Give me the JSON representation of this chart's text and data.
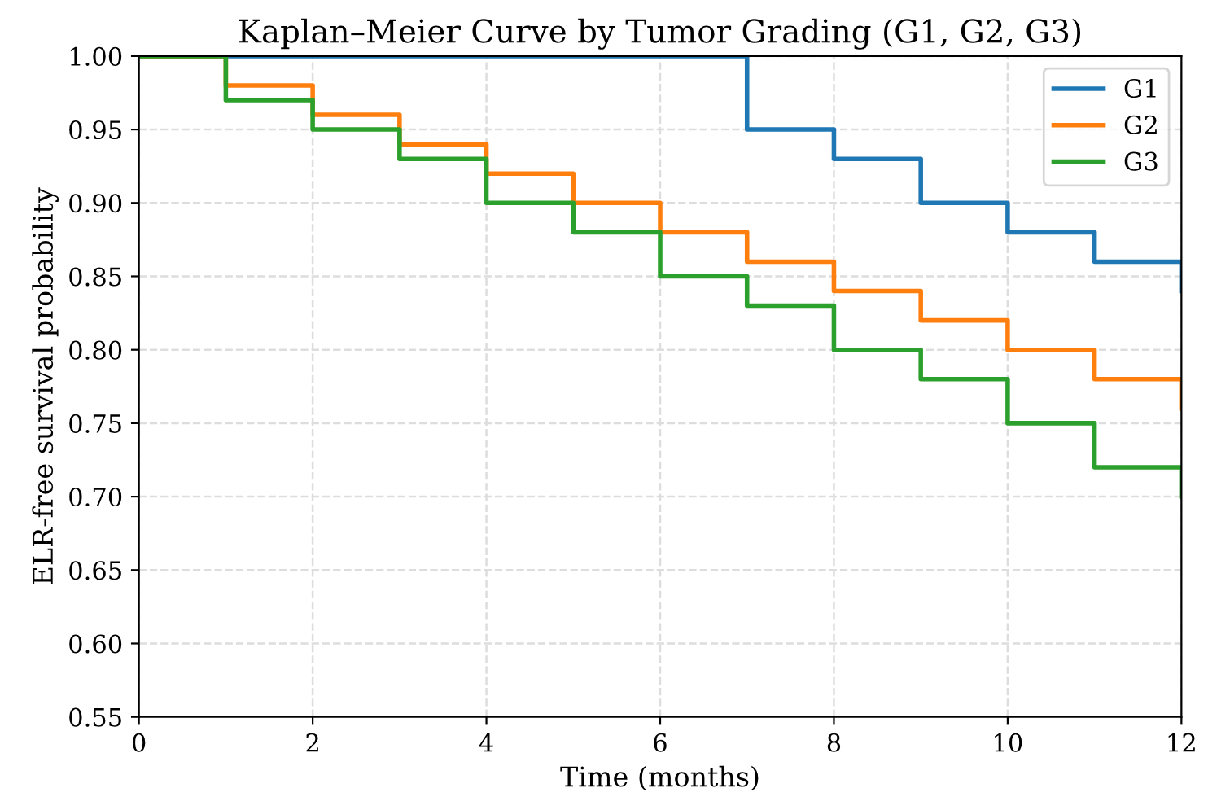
{
  "chart_data": {
    "type": "step",
    "title": "Kaplan–Meier Curve by Tumor Grading (G1, G2, G3)",
    "xlabel": "Time (months)",
    "ylabel": "ELR-free survival probability",
    "x": [
      0,
      1,
      2,
      3,
      4,
      5,
      6,
      7,
      8,
      9,
      10,
      11,
      12
    ],
    "series": [
      {
        "name": "G1",
        "color": "#1f77b4",
        "values": [
          1.0,
          1.0,
          1.0,
          1.0,
          1.0,
          1.0,
          1.0,
          0.95,
          0.93,
          0.9,
          0.88,
          0.86,
          0.84
        ]
      },
      {
        "name": "G2",
        "color": "#ff7f0e",
        "values": [
          1.0,
          0.98,
          0.96,
          0.94,
          0.92,
          0.9,
          0.88,
          0.86,
          0.84,
          0.82,
          0.8,
          0.78,
          0.76
        ]
      },
      {
        "name": "G3",
        "color": "#2ca02c",
        "values": [
          1.0,
          0.97,
          0.95,
          0.93,
          0.9,
          0.88,
          0.85,
          0.83,
          0.8,
          0.78,
          0.75,
          0.72,
          0.7
        ]
      }
    ],
    "xlim": [
      0,
      12
    ],
    "xticks": [
      0,
      2,
      4,
      6,
      8,
      10,
      12
    ],
    "ylim": [
      0.55,
      1.0
    ],
    "yticks": [
      {
        "value": 0.55,
        "label": "0.55"
      },
      {
        "value": 0.6,
        "label": "0.60"
      },
      {
        "value": 0.65,
        "label": "0.65"
      },
      {
        "value": 0.7,
        "label": "0.70"
      },
      {
        "value": 0.75,
        "label": "0.75"
      },
      {
        "value": 0.8,
        "label": "0.80"
      },
      {
        "value": 0.85,
        "label": "0.85"
      },
      {
        "value": 0.9,
        "label": "0.90"
      },
      {
        "value": 0.95,
        "label": "0.95"
      },
      {
        "value": 1.0,
        "label": "1.00"
      }
    ],
    "grid": true,
    "legend": "top right",
    "line_style": "solid",
    "marker": "none"
  }
}
